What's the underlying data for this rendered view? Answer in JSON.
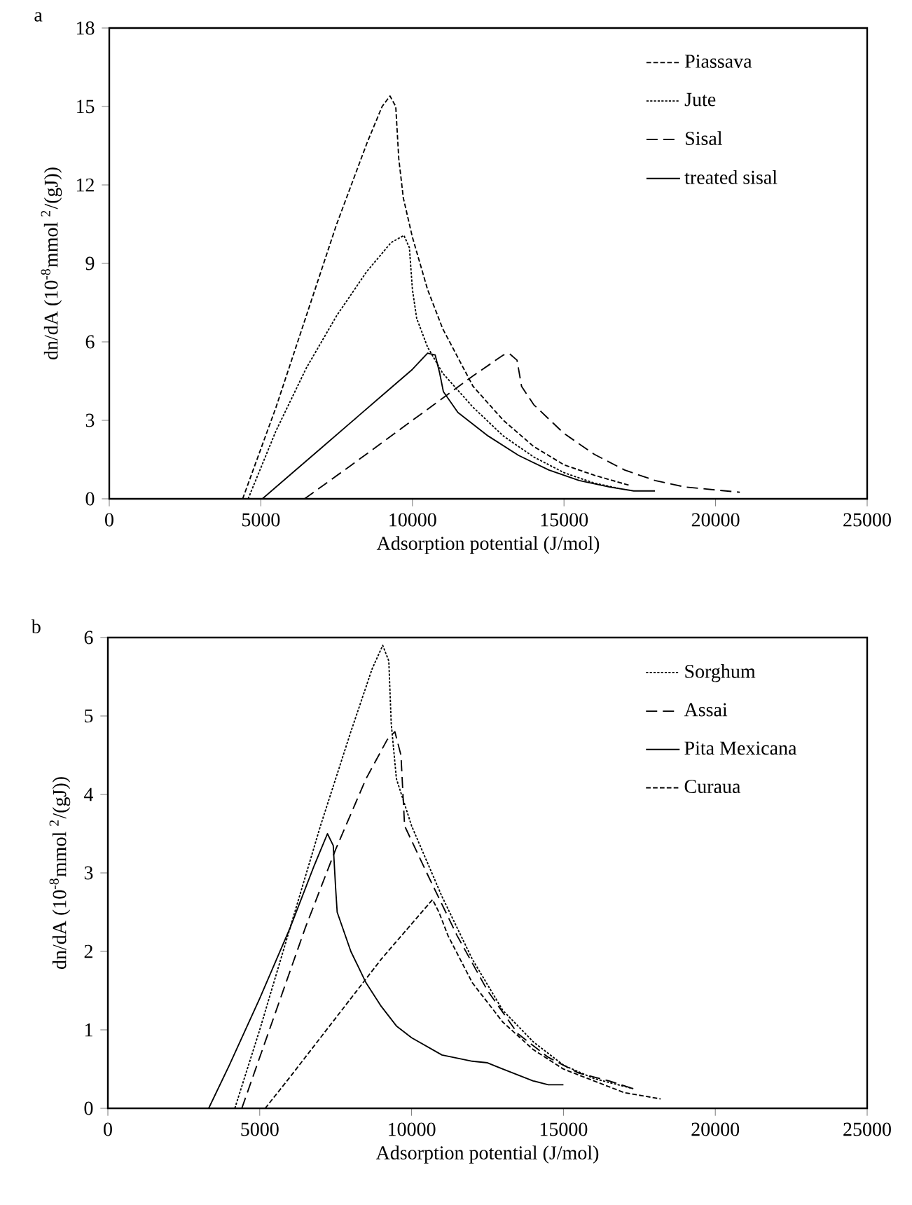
{
  "chart_data": [
    {
      "type": "line",
      "title": "a",
      "xlabel": "Adsorption potential (J/mol)",
      "ylabel": "dn/dA (10$^{-8}$mmol $^{2}$/(gJ))",
      "xlim": [
        0,
        25000
      ],
      "xticks": [
        0,
        5000,
        10000,
        15000,
        20000,
        25000
      ],
      "ylim": [
        0,
        18
      ],
      "yticks": [
        0,
        3,
        6,
        9,
        12,
        15,
        18
      ],
      "legend": "top right",
      "marker": "none",
      "grid": false,
      "series": [
        {
          "name": "Piassava",
          "color": "#000000",
          "line_style": "densely dashed",
          "x": [
            4400,
            5500,
            6500,
            7500,
            8500,
            9000,
            9260,
            9450,
            9550,
            9700,
            10000,
            10500,
            11000,
            12000,
            13000,
            14000,
            15000,
            16000,
            17200
          ],
          "values": [
            0,
            3.5,
            7,
            10.5,
            13.6,
            15.0,
            15.4,
            15,
            13,
            11.5,
            10,
            8,
            6.5,
            4.3,
            3,
            2,
            1.3,
            0.9,
            0.5
          ]
        },
        {
          "name": "Jute",
          "color": "#000000",
          "line_style": "dotted",
          "x": [
            4580,
            5500,
            6500,
            7500,
            8500,
            9300,
            9720,
            9900,
            10000,
            10140,
            10500,
            11000,
            12000,
            13000,
            14000,
            15000,
            16000,
            16800
          ],
          "values": [
            0,
            2.6,
            5,
            7,
            8.7,
            9.8,
            10.07,
            9.6,
            8,
            6.9,
            5.8,
            4.8,
            3.5,
            2.4,
            1.6,
            1.0,
            0.6,
            0.4
          ]
        },
        {
          "name": "Sisal",
          "color": "#000000",
          "line_style": "dashed",
          "x": [
            6440,
            8000,
            10000,
            12000,
            13000,
            13200,
            13450,
            13600,
            14000,
            15000,
            16000,
            17000,
            18000,
            19000,
            20800
          ],
          "values": [
            0,
            1.3,
            3,
            4.7,
            5.5,
            5.55,
            5.3,
            4.3,
            3.6,
            2.5,
            1.7,
            1.1,
            0.7,
            0.45,
            0.25
          ]
        },
        {
          "name": "treated sisal",
          "color": "#000000",
          "line_style": "solid",
          "x": [
            5050,
            6000,
            7000,
            8000,
            9000,
            10000,
            10500,
            10750,
            10900,
            11020,
            11500,
            12500,
            13500,
            14500,
            15500,
            16500,
            17300,
            18000
          ],
          "values": [
            0,
            0.95,
            1.95,
            2.95,
            3.95,
            4.95,
            5.57,
            5.5,
            4.8,
            4.1,
            3.3,
            2.4,
            1.66,
            1.1,
            0.7,
            0.45,
            0.3,
            0.3
          ]
        }
      ]
    },
    {
      "type": "line",
      "title": "b",
      "xlabel": "Adsorption potential (J/mol)",
      "ylabel": "dn/dA (10$^{-8}$mmol $^{2}$/(gJ))",
      "xlim": [
        0,
        25000
      ],
      "xticks": [
        0,
        5000,
        10000,
        15000,
        20000,
        25000
      ],
      "ylim": [
        0,
        6
      ],
      "yticks": [
        0,
        1,
        2,
        3,
        4,
        5,
        6
      ],
      "legend": "top right",
      "marker": "none",
      "grid": false,
      "series": [
        {
          "name": "Sorghum",
          "color": "#000000",
          "line_style": "dotted",
          "x": [
            4180,
            5000,
            6000,
            7000,
            8000,
            8700,
            9050,
            9250,
            9330,
            9500,
            10000,
            11000,
            12000,
            13000,
            14000,
            15000,
            16000,
            17300
          ],
          "values": [
            0,
            1.0,
            2.3,
            3.6,
            4.8,
            5.6,
            5.9,
            5.7,
            4.9,
            4.2,
            3.6,
            2.7,
            1.9,
            1.25,
            0.85,
            0.55,
            0.38,
            0.25
          ]
        },
        {
          "name": "Assai",
          "color": "#000000",
          "line_style": "dashed",
          "x": [
            4410,
            5500,
            6500,
            7500,
            8500,
            9200,
            9450,
            9650,
            9770,
            10500,
            11500,
            12500,
            13500,
            14500,
            15500,
            16500,
            17300
          ],
          "values": [
            0,
            1.2,
            2.3,
            3.3,
            4.2,
            4.7,
            4.8,
            4.5,
            3.6,
            3.0,
            2.2,
            1.5,
            0.95,
            0.65,
            0.45,
            0.35,
            0.25
          ]
        },
        {
          "name": "Pita Mexicana",
          "color": "#000000",
          "line_style": "solid",
          "x": [
            3320,
            4000,
            5000,
            6000,
            6800,
            7230,
            7420,
            7500,
            7550,
            8000,
            8500,
            9000,
            9500,
            10000,
            11000,
            12000,
            12500,
            13000,
            14000,
            14500,
            15000
          ],
          "values": [
            0,
            0.55,
            1.4,
            2.3,
            3.1,
            3.5,
            3.35,
            2.8,
            2.5,
            2.0,
            1.6,
            1.3,
            1.05,
            0.9,
            0.68,
            0.6,
            0.58,
            0.5,
            0.35,
            0.3,
            0.3
          ]
        },
        {
          "name": "Curaua",
          "color": "#000000",
          "line_style": "densely dashed",
          "x": [
            5180,
            6000,
            7000,
            8000,
            9000,
            10000,
            10690,
            10900,
            11200,
            12000,
            13000,
            14000,
            15000,
            16000,
            17000,
            18200
          ],
          "values": [
            0,
            0.4,
            0.9,
            1.4,
            1.9,
            2.35,
            2.66,
            2.5,
            2.2,
            1.6,
            1.1,
            0.75,
            0.5,
            0.35,
            0.2,
            0.12
          ]
        }
      ]
    }
  ]
}
